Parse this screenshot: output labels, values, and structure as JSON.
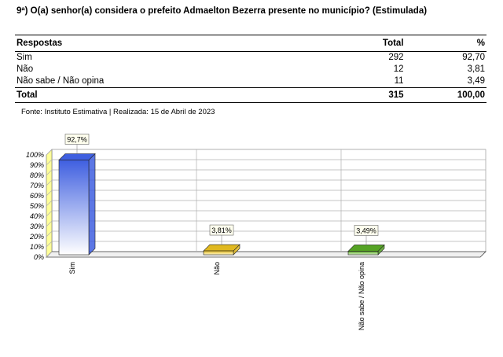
{
  "question": "9ª) O(a) senhor(a) considera o prefeito Admaelton Bezerra presente no município? (Estimulada)",
  "table": {
    "headers": [
      "Respostas",
      "Total",
      "%"
    ],
    "rows": [
      {
        "label": "Sim",
        "total": "292",
        "pct": "92,70"
      },
      {
        "label": "Não",
        "total": "12",
        "pct": "3,81"
      },
      {
        "label": "Não sabe / Não opina",
        "total": "11",
        "pct": "3,49"
      }
    ],
    "total_row": {
      "label": "Total",
      "total": "315",
      "pct": "100,00"
    }
  },
  "source": "Fonte: Instituto Estimativa | Realizada: 15 de Abril de 2023",
  "chart_data": {
    "type": "bar",
    "categories": [
      "Sim",
      "Não",
      "Não sabe / Não opina"
    ],
    "values": [
      92.7,
      3.81,
      3.49
    ],
    "data_labels": [
      "92,7%",
      "3,81%",
      "3,49%"
    ],
    "yticks": [
      "0%",
      "10%",
      "20%",
      "30%",
      "40%",
      "50%",
      "60%",
      "70%",
      "80%",
      "90%",
      "100%"
    ],
    "ylim": [
      0,
      100
    ],
    "grid": true,
    "colors": [
      "#3f5fe0",
      "#e0b81f",
      "#55a324"
    ],
    "wall_color": "#ffff99"
  }
}
